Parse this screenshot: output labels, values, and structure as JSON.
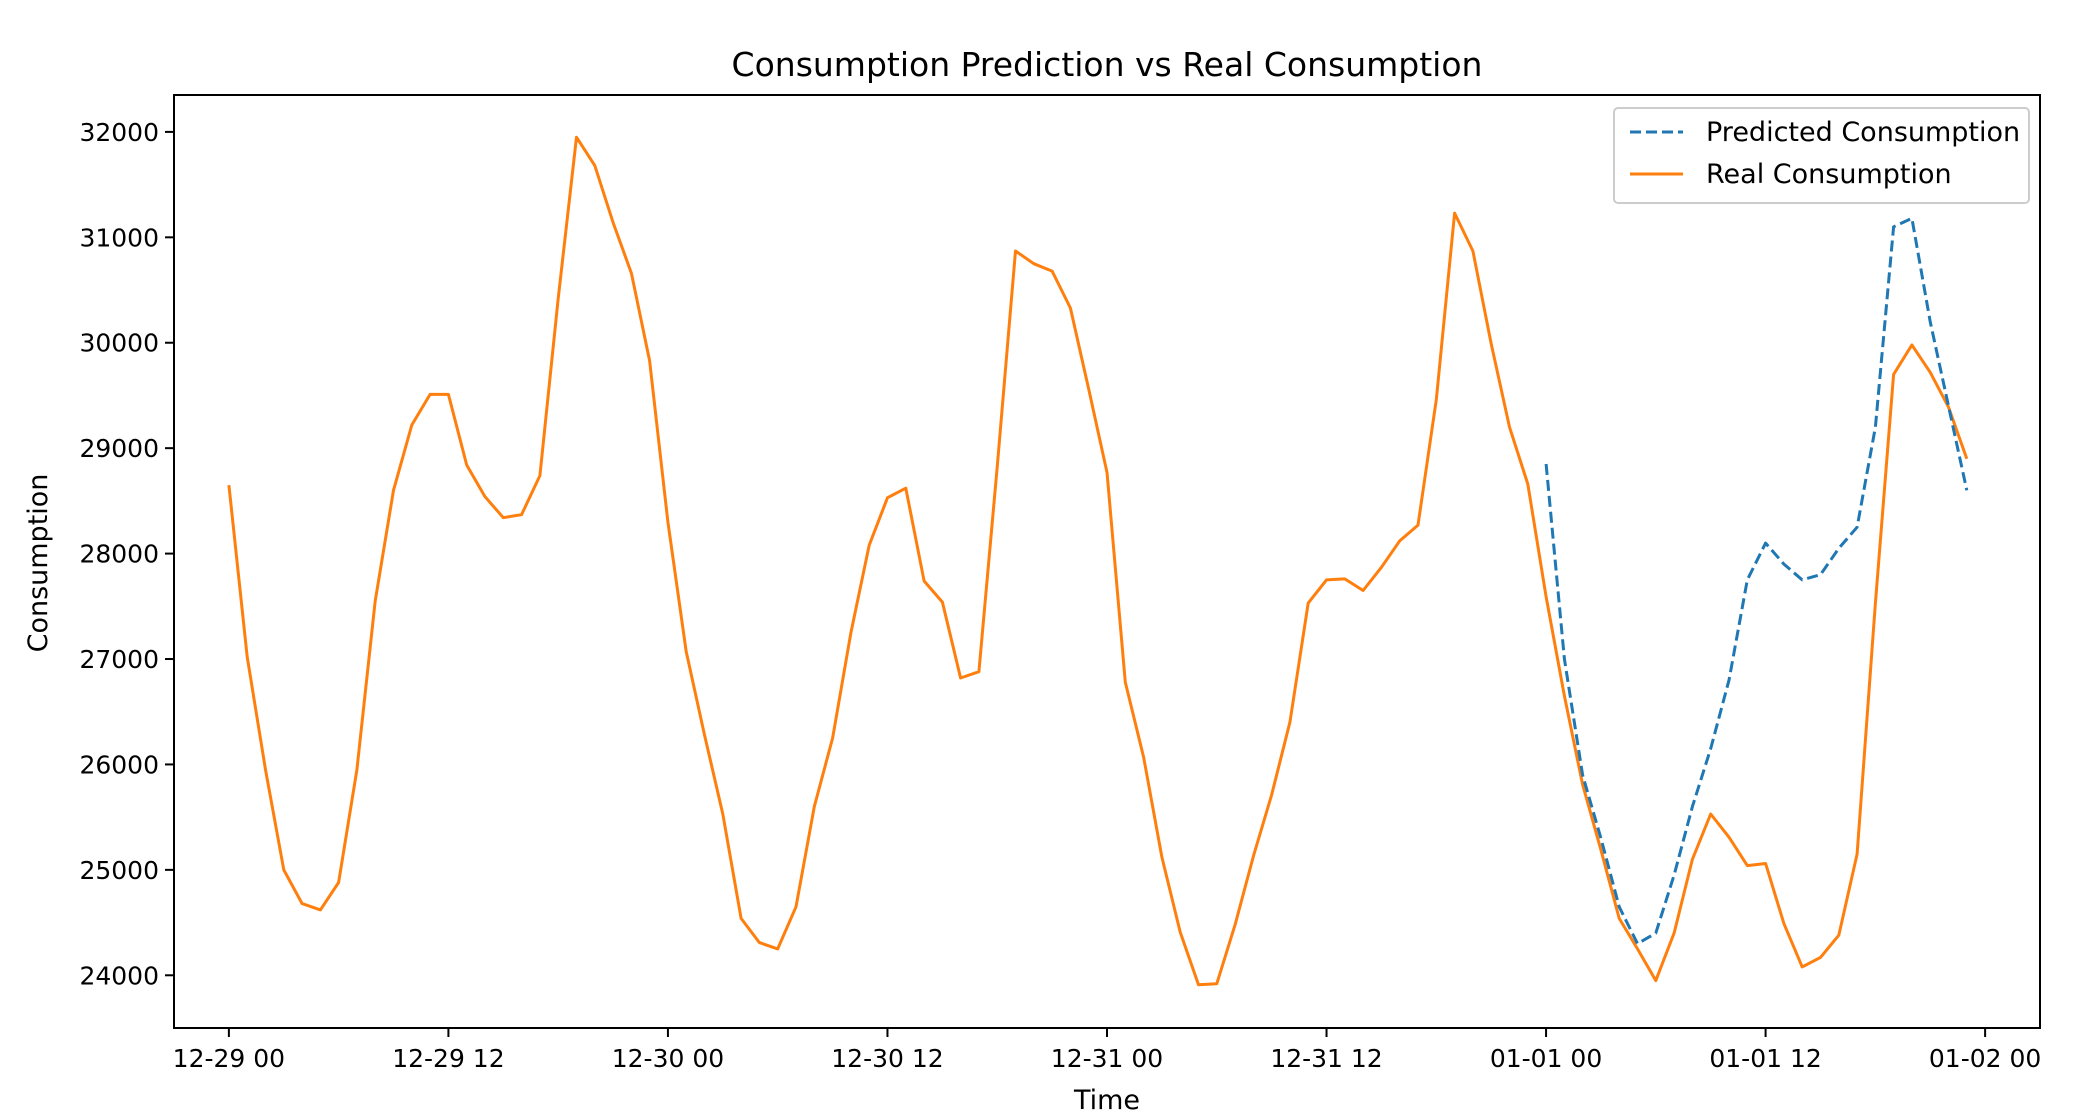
{
  "chart_data": {
    "type": "line",
    "title": "Consumption Prediction vs Real Consumption",
    "xlabel": "Time",
    "ylabel": "Consumption",
    "x_axis": {
      "scale": "time",
      "range": [
        "12-28 21",
        "01-02 03"
      ],
      "ticks": [
        {
          "hour": 0,
          "label": "12-29 00"
        },
        {
          "hour": 12,
          "label": "12-29 12"
        },
        {
          "hour": 24,
          "label": "12-30 00"
        },
        {
          "hour": 36,
          "label": "12-30 12"
        },
        {
          "hour": 48,
          "label": "12-31 00"
        },
        {
          "hour": 60,
          "label": "12-31 12"
        },
        {
          "hour": 72,
          "label": "01-01 00"
        },
        {
          "hour": 84,
          "label": "01-01 12"
        },
        {
          "hour": 96,
          "label": "01-02 00"
        }
      ]
    },
    "y_axis": {
      "ylim": [
        23500,
        32350
      ],
      "ticks": [
        24000,
        25000,
        26000,
        27000,
        28000,
        29000,
        30000,
        31000,
        32000
      ]
    },
    "grid": false,
    "legend_position": "top-right",
    "series": [
      {
        "name": "Predicted Consumption",
        "color": "#1f77b4",
        "style": "dashed",
        "x_start": "01-01 00",
        "interval_hours": 1,
        "values": [
          28850,
          27000,
          25900,
          25300,
          24650,
          24300,
          24400,
          24950,
          25600,
          26150,
          26800,
          27750,
          28100,
          27900,
          27750,
          27800,
          28050,
          28250,
          29200,
          31100,
          31180,
          30200,
          29400,
          28600
        ]
      },
      {
        "name": "Real Consumption",
        "color": "#ff7f0e",
        "style": "solid",
        "x_start": "12-29 00",
        "interval_hours": 1,
        "values": [
          28650,
          27020,
          25950,
          25000,
          24680,
          24620,
          24880,
          25950,
          27550,
          28600,
          29220,
          29510,
          29510,
          28840,
          28540,
          28340,
          28370,
          28740,
          30420,
          31950,
          31680,
          31140,
          30660,
          29830,
          28300,
          27070,
          26280,
          25530,
          24540,
          24310,
          24250,
          24650,
          25600,
          26250,
          27250,
          28080,
          28530,
          28620,
          27740,
          27540,
          26820,
          26880,
          28820,
          30870,
          30750,
          30680,
          30330,
          29560,
          28770,
          26780,
          26070,
          25120,
          24410,
          23910,
          23920,
          24480,
          25130,
          25710,
          26400,
          27530,
          27750,
          27760,
          27650,
          27870,
          28120,
          28270,
          29460,
          31230,
          30870,
          29990,
          29200,
          28660,
          27590,
          26650,
          25810,
          25190,
          24540,
          24250,
          23950,
          24400,
          25100,
          25530,
          25310,
          25040,
          25060,
          24490,
          24080,
          24170,
          24380,
          25150,
          27530,
          29700,
          29980,
          29720,
          29390,
          28900
        ]
      }
    ]
  }
}
